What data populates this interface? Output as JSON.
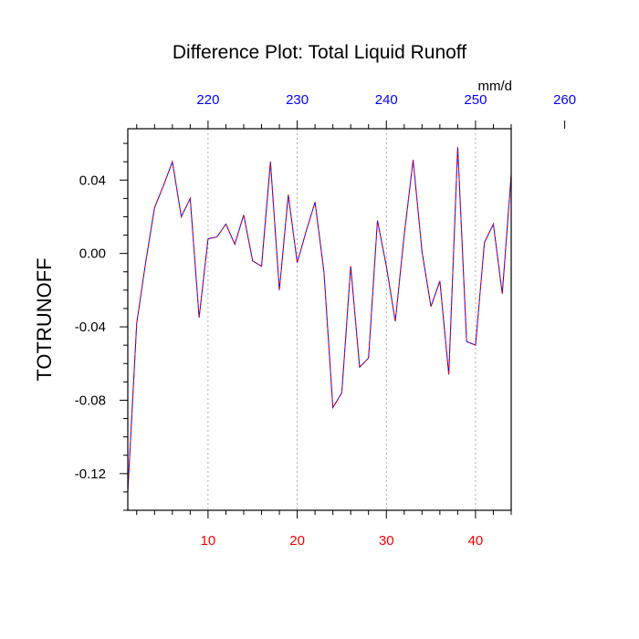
{
  "chart_data": {
    "type": "line",
    "title": "Difference Plot: Total Liquid Runoff",
    "ylabel": "TOTRUNOFF",
    "units": "mm/d",
    "xlim": [
      1,
      44
    ],
    "ylim": [
      -0.14,
      0.068
    ],
    "bottom_axis": {
      "ticks": [
        10,
        20,
        30,
        40
      ],
      "labels": [
        "10",
        "20",
        "30",
        "40"
      ],
      "label_color": "#ff0000"
    },
    "top_axis": {
      "ticks": [
        220,
        230,
        240,
        250,
        260
      ],
      "labels": [
        "220",
        "230",
        "240",
        "250",
        "260"
      ],
      "label_color": "#0000ff",
      "offset_from_bottom": 210
    },
    "y_ticks": [
      0.04,
      0.0,
      -0.04,
      -0.08,
      -0.12
    ],
    "y_tick_labels": [
      "0.04",
      "0.00",
      "-0.04",
      "-0.08",
      "-0.12"
    ],
    "grid": "vertical dotted at major bottom ticks",
    "series": [
      {
        "color": "#0000ff",
        "dash_color": "#ff0000",
        "x": [
          1,
          2,
          3,
          4,
          5,
          6,
          7,
          8,
          9,
          10,
          11,
          12,
          13,
          14,
          15,
          16,
          17,
          18,
          19,
          20,
          21,
          22,
          23,
          24,
          25,
          26,
          27,
          28,
          29,
          30,
          31,
          32,
          33,
          34,
          35,
          36,
          37,
          38,
          39,
          40,
          41,
          42,
          43,
          44
        ],
        "values": [
          -0.13,
          -0.038,
          -0.005,
          0.025,
          0.037,
          0.05,
          0.02,
          0.03,
          -0.035,
          0.008,
          0.009,
          0.016,
          0.005,
          0.021,
          -0.004,
          -0.007,
          0.05,
          -0.02,
          0.032,
          -0.005,
          0.012,
          0.028,
          -0.01,
          -0.084,
          -0.076,
          -0.007,
          -0.062,
          -0.057,
          0.018,
          -0.007,
          -0.037,
          0.01,
          0.051,
          0.001,
          -0.029,
          -0.015,
          -0.066,
          0.058,
          -0.048,
          -0.05,
          0.006,
          0.016,
          -0.022,
          0.043
        ]
      }
    ]
  }
}
